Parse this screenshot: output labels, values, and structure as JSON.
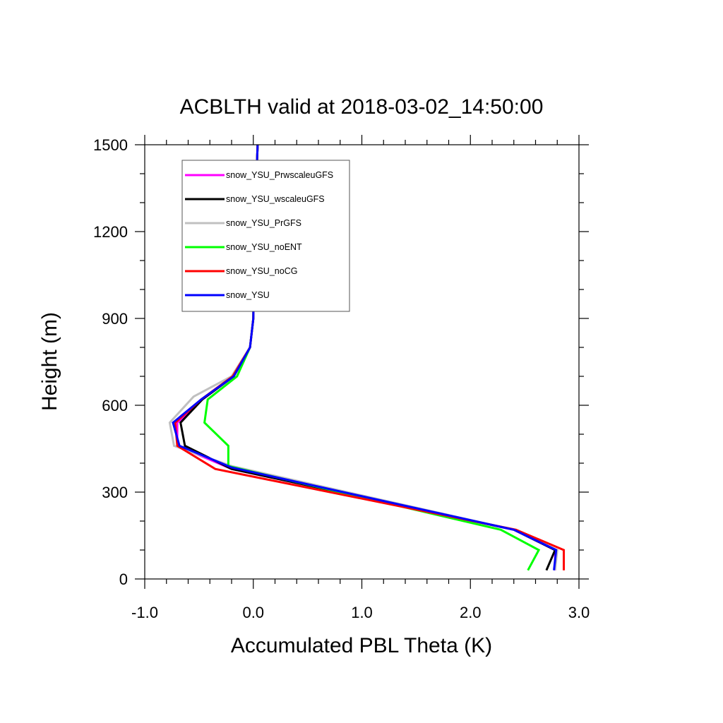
{
  "chart_data": {
    "type": "line",
    "title": "ACBLTH valid at 2018-03-02_14:50:00",
    "xlabel": "Accumulated PBL Theta (K)",
    "ylabel": "Height (m)",
    "xlim": [
      -1.0,
      3.0
    ],
    "ylim": [
      0,
      1500
    ],
    "x_ticks": [
      -1.0,
      0.0,
      1.0,
      2.0,
      3.0
    ],
    "x_tick_labels": [
      "-1.0",
      "0.0",
      "1.0",
      "2.0",
      "3.0"
    ],
    "y_ticks": [
      0,
      300,
      600,
      900,
      1200,
      1500
    ],
    "y_tick_labels": [
      "0",
      "300",
      "600",
      "900",
      "1200",
      "1500"
    ],
    "grid": false,
    "legend_position": "top-left",
    "series": [
      {
        "name": "snow_YSU_PrwscaleuGFS",
        "color": "#ff00ff",
        "points": [
          [
            2.78,
            30
          ],
          [
            2.78,
            100
          ],
          [
            2.4,
            170
          ],
          [
            -0.2,
            380
          ],
          [
            -0.7,
            460
          ],
          [
            -0.7,
            540
          ],
          [
            -0.47,
            620
          ],
          [
            -0.18,
            700
          ],
          [
            -0.03,
            800
          ],
          [
            0.0,
            900
          ],
          [
            0.01,
            1200
          ],
          [
            0.04,
            1500
          ]
        ]
      },
      {
        "name": "snow_YSU_wscaleuGFS",
        "color": "#000000",
        "points": [
          [
            2.7,
            30
          ],
          [
            2.78,
            100
          ],
          [
            2.4,
            170
          ],
          [
            -0.2,
            380
          ],
          [
            -0.63,
            460
          ],
          [
            -0.67,
            540
          ],
          [
            -0.47,
            620
          ],
          [
            -0.18,
            700
          ],
          [
            -0.03,
            800
          ],
          [
            0.0,
            900
          ],
          [
            0.01,
            1200
          ],
          [
            0.04,
            1500
          ]
        ]
      },
      {
        "name": "snow_YSU_PrGFS",
        "color": "#c0c0c0",
        "points": [
          [
            2.78,
            30
          ],
          [
            2.8,
            100
          ],
          [
            2.4,
            170
          ],
          [
            -0.2,
            390
          ],
          [
            -0.73,
            460
          ],
          [
            -0.77,
            540
          ],
          [
            -0.55,
            630
          ],
          [
            -0.2,
            700
          ],
          [
            -0.03,
            800
          ],
          [
            0.0,
            900
          ],
          [
            0.01,
            1200
          ],
          [
            0.04,
            1500
          ]
        ]
      },
      {
        "name": "snow_YSU_noENT",
        "color": "#00ff00",
        "points": [
          [
            2.53,
            30
          ],
          [
            2.63,
            100
          ],
          [
            2.28,
            170
          ],
          [
            -0.23,
            390
          ],
          [
            -0.23,
            460
          ],
          [
            -0.45,
            540
          ],
          [
            -0.42,
            620
          ],
          [
            -0.15,
            700
          ],
          [
            -0.03,
            800
          ],
          [
            0.0,
            900
          ],
          [
            0.01,
            1200
          ],
          [
            0.04,
            1500
          ]
        ]
      },
      {
        "name": "snow_YSU_noCG",
        "color": "#ff0000",
        "points": [
          [
            2.86,
            30
          ],
          [
            2.86,
            100
          ],
          [
            2.42,
            170
          ],
          [
            -0.35,
            380
          ],
          [
            -0.7,
            460
          ],
          [
            -0.72,
            540
          ],
          [
            -0.48,
            620
          ],
          [
            -0.19,
            700
          ],
          [
            -0.03,
            800
          ],
          [
            0.0,
            900
          ],
          [
            0.01,
            1200
          ],
          [
            0.04,
            1500
          ]
        ]
      },
      {
        "name": "snow_YSU",
        "color": "#0000ff",
        "points": [
          [
            2.77,
            30
          ],
          [
            2.79,
            100
          ],
          [
            2.4,
            170
          ],
          [
            -0.2,
            385
          ],
          [
            -0.68,
            460
          ],
          [
            -0.74,
            540
          ],
          [
            -0.48,
            620
          ],
          [
            -0.18,
            700
          ],
          [
            -0.03,
            800
          ],
          [
            0.0,
            900
          ],
          [
            0.01,
            1200
          ],
          [
            0.04,
            1500
          ]
        ]
      }
    ]
  }
}
